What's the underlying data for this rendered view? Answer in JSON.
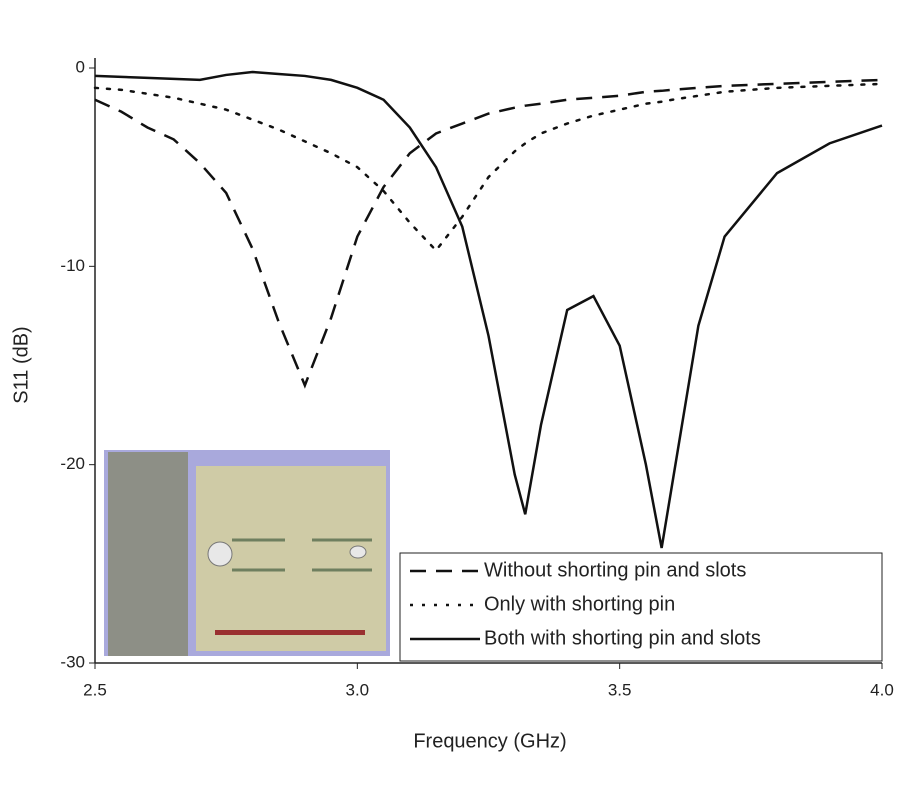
{
  "chart_data": {
    "type": "line",
    "x_label": "Frequency (GHz)",
    "y_label": "S11 (dB)",
    "x": [
      2.5,
      2.55,
      2.6,
      2.65,
      2.7,
      2.75,
      2.8,
      2.85,
      2.9,
      2.95,
      3.0,
      3.05,
      3.1,
      3.15,
      3.2,
      3.25,
      3.3,
      3.32,
      3.35,
      3.4,
      3.45,
      3.5,
      3.55,
      3.58,
      3.6,
      3.65,
      3.7,
      3.8,
      3.9,
      4.0
    ],
    "series": [
      {
        "name": "Without shorting pin and slots",
        "color": "#111111",
        "dash": "dashed",
        "values": [
          -1.6,
          -2.2,
          -3.0,
          -3.6,
          -4.8,
          -6.3,
          -9.1,
          -12.8,
          -16.0,
          -12.6,
          -8.5,
          -6.0,
          -4.3,
          -3.3,
          -2.8,
          -2.3,
          -2.0,
          -1.9,
          -1.8,
          -1.6,
          -1.5,
          -1.4,
          -1.2,
          -1.15,
          -1.1,
          -1.0,
          -0.9,
          -0.8,
          -0.7,
          -0.6
        ]
      },
      {
        "name": "Only with shorting pin",
        "color": "#111111",
        "dash": "dotted",
        "values": [
          -1.0,
          -1.1,
          -1.3,
          -1.5,
          -1.8,
          -2.1,
          -2.6,
          -3.1,
          -3.7,
          -4.3,
          -5.0,
          -6.2,
          -7.8,
          -9.2,
          -7.5,
          -5.5,
          -4.2,
          -3.8,
          -3.3,
          -2.8,
          -2.4,
          -2.1,
          -1.8,
          -1.7,
          -1.6,
          -1.4,
          -1.2,
          -1.0,
          -0.9,
          -0.8
        ]
      },
      {
        "name": "Both with shorting pin and slots",
        "color": "#111111",
        "dash": "solid",
        "values": [
          -0.4,
          -0.45,
          -0.5,
          -0.55,
          -0.6,
          -0.35,
          -0.2,
          -0.3,
          -0.4,
          -0.6,
          -1.0,
          -1.6,
          -3.0,
          -5.0,
          -8.0,
          -13.5,
          -20.5,
          -22.5,
          -18.0,
          -12.2,
          -11.5,
          -14.0,
          -20.0,
          -24.2,
          -21.0,
          -13.0,
          -8.5,
          -5.3,
          -3.8,
          -2.9
        ]
      }
    ],
    "xlim": [
      2.5,
      4.0
    ],
    "xticks": [
      2.5,
      {
        "value": 3.0,
        "label": "3.0"
      },
      3.5,
      {
        "value": 4.0,
        "label": "4.0"
      }
    ],
    "ylim": [
      -30,
      0
    ],
    "yticks": [
      0,
      -10,
      -20,
      -30
    ],
    "legend": "lower-right",
    "grid": false
  }
}
